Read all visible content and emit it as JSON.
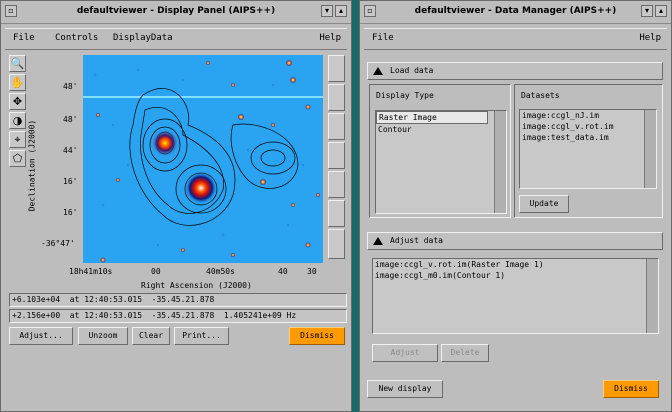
{
  "display_panel": {
    "title": "defaultviewer - Display Panel (AIPS++)",
    "menu": [
      "File",
      "Controls",
      "DisplayData"
    ],
    "help": "Help",
    "y_axis_label": "Declination (J2000)",
    "x_axis_label": "Right Ascension (J2000)",
    "y_ticks": [
      "48'",
      "48'",
      "44'",
      "16'",
      "16'",
      "-36°47'"
    ],
    "x_ticks": [
      "18h41m10s",
      "00",
      "40m50s",
      "40",
      "30"
    ],
    "readout_1": "+6.103e+04  at 12:40:53.015  -35.45.21.878",
    "readout_2": "+2.156e+00  at 12:40:53.015  -35.45.21.878  1.405241e+09 Hz",
    "buttons": {
      "adjust": "Adjust...",
      "unzoom": "Unzoom",
      "clear": "Clear",
      "print": "Print...",
      "dismiss": "Dismiss"
    },
    "tool_icons": [
      "zoom-icon",
      "pan-hand-icon",
      "move-icon",
      "colormap-icon",
      "position-icon",
      "polygon-region-icon"
    ]
  },
  "data_manager": {
    "title": "defaultviewer - Data Manager (AIPS++)",
    "menu_file": "File",
    "help": "Help",
    "load_data_label": "Load data",
    "display_type_label": "Display Type",
    "datasets_label": "Datasets",
    "display_types": [
      "Raster Image",
      "Contour"
    ],
    "selected_display_type": "Raster Image",
    "datasets": [
      "image:ccgl_nJ.im",
      "image:ccgl_v.rot.im",
      "image:test_data.im"
    ],
    "update_label": "Update",
    "adjust_data_label": "Adjust data",
    "loaded": [
      "image:ccgl_v.rot.im(Raster Image 1)",
      "image:ccgl_m0.im(Contour 1)"
    ],
    "adjust_button": "Adjust",
    "delete_button": "Delete",
    "new_display": "New display",
    "dismiss": "Dismiss"
  },
  "colors": {
    "desktop": "#1a6a6a",
    "window": "#bdbdbd",
    "dismiss": "#ff9a00",
    "image_bg": "#2aa3f0"
  }
}
